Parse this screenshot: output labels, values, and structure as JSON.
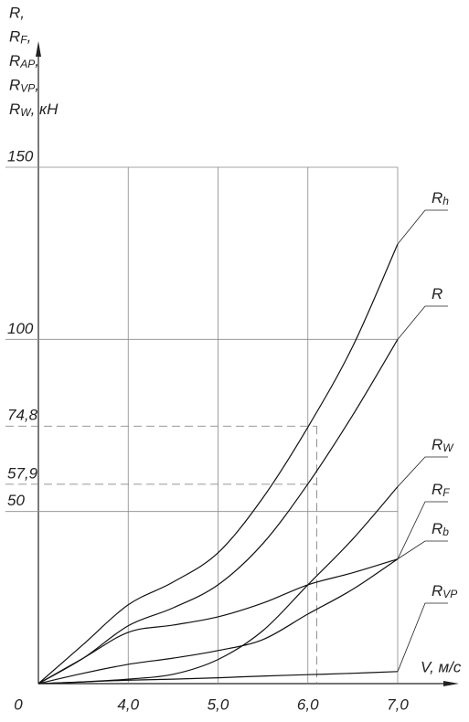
{
  "chart_data": {
    "type": "line",
    "y_label": [
      "R,",
      "RF,",
      "RAP,",
      "RVP,",
      "RW,  кН"
    ],
    "x_label": "V, м/с",
    "origin_label": "0",
    "x": [
      3,
      3.5,
      4,
      4.5,
      5,
      5.5,
      6,
      6.5,
      7
    ],
    "series": [
      {
        "name": "Rh",
        "color": "#111",
        "values": [
          0,
          11.4,
          22.9,
          29.5,
          38,
          54,
          74.5,
          98,
          127.7
        ]
      },
      {
        "name": "R",
        "color": "#111",
        "values": [
          0,
          7.4,
          16.8,
          22,
          28.7,
          40.7,
          58,
          78,
          100
        ]
      },
      {
        "name": "RW",
        "color": "#111",
        "values": [
          0,
          0.5,
          1.3,
          2.7,
          7,
          15.4,
          28.7,
          42,
          57.2
        ]
      },
      {
        "name": "RF",
        "color": "#111",
        "values": [
          0,
          3,
          5.6,
          7.4,
          9.6,
          12.8,
          20.2,
          27.4,
          36.2
        ]
      },
      {
        "name": "Rb",
        "color": "#111",
        "values": [
          0,
          7.4,
          14.9,
          17,
          19.4,
          23.4,
          28.7,
          32.2,
          36.2
        ]
      },
      {
        "name": "RVP",
        "color": "#111",
        "values": [
          0,
          0.5,
          1,
          1.3,
          1.7,
          2.2,
          2.6,
          3,
          3.5
        ]
      }
    ],
    "xlim": [
      3,
      7
    ],
    "ylim": [
      0,
      150
    ],
    "xticks": [
      {
        "value": 4,
        "label": "4,0"
      },
      {
        "value": 5,
        "label": "5,0"
      },
      {
        "value": 6,
        "label": "6,0"
      },
      {
        "value": 7,
        "label": "7,0"
      }
    ],
    "yticks": [
      50,
      {
        "value": 57.9,
        "label": "57,9"
      },
      {
        "value": 74.8,
        "label": "74,8"
      },
      100,
      150
    ],
    "reference_lines": {
      "x": 6.1,
      "y": [
        57.9,
        74.8
      ]
    },
    "grid": true
  }
}
